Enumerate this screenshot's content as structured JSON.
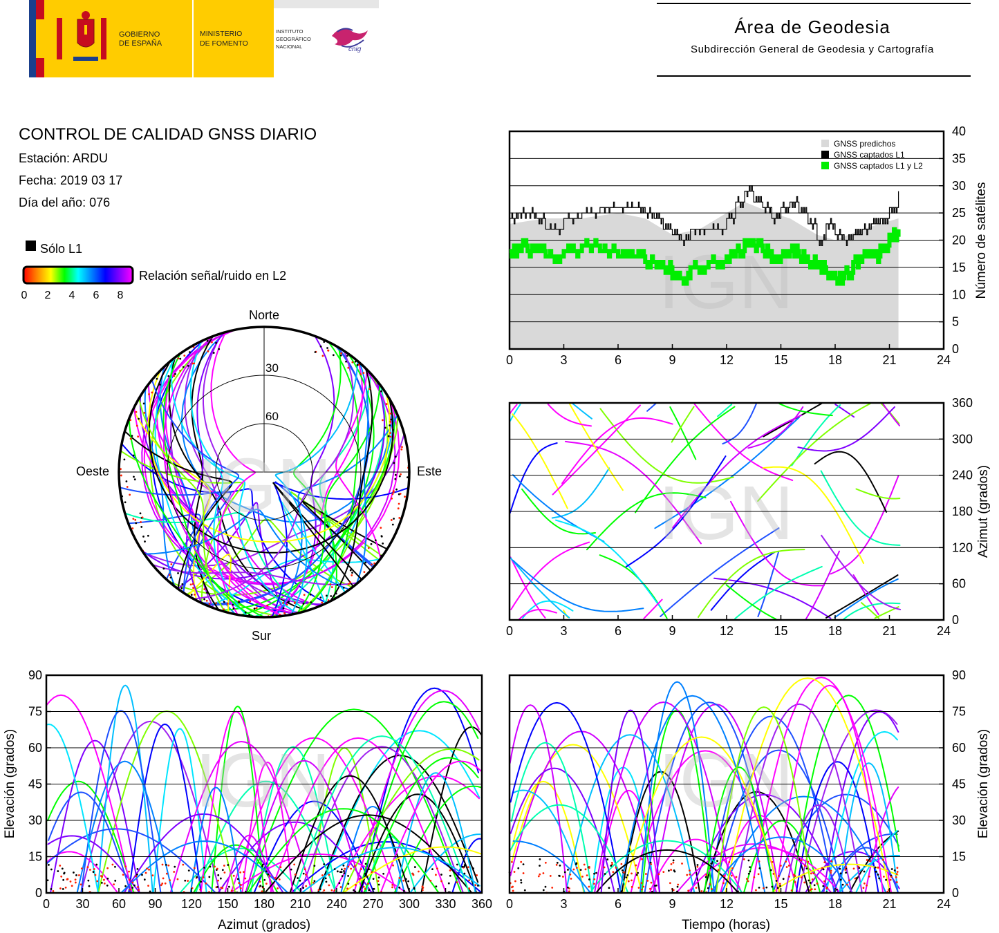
{
  "header": {
    "gov_line1": "GOBIERNO",
    "gov_line2": "DE ESPAÑA",
    "ministry_line1": "MINISTERIO",
    "ministry_line2": "DE FOMENTO",
    "ign_line1": "INSTITUTO",
    "ign_line2": "GEOGRÁFICO",
    "ign_line3": "NACIONAL",
    "cnig_logo_text": "cnig",
    "title": "Área de Geodesia",
    "subtitle": "Subdirección General de Geodesia y Cartografía"
  },
  "report": {
    "title": "CONTROL DE CALIDAD GNSS DIARIO",
    "station": "Estación: ARDU",
    "date": "Fecha: 2019 03 17",
    "doy": "Día del año: 076"
  },
  "legend": {
    "only_l1": "Sólo L1",
    "snr_label": "Relación señal/ruido en L2",
    "snr_ticks": [
      "0",
      "2",
      "4",
      "6",
      "8"
    ],
    "snr_colors": [
      "#ff0000",
      "#ff8800",
      "#ffff00",
      "#00ff00",
      "#00ffff",
      "#0080ff",
      "#0000ff",
      "#8000ff",
      "#ff00ff"
    ]
  },
  "watermark": "IGN",
  "chart_data": [
    {
      "id": "satellite-count",
      "type": "line",
      "ylabel": "Número de satélites",
      "xlim": [
        0,
        24
      ],
      "ylim": [
        0,
        40
      ],
      "xticks": [
        "0",
        "3",
        "6",
        "9",
        "12",
        "15",
        "18",
        "21",
        "24"
      ],
      "yticks": [
        "0",
        "5",
        "10",
        "15",
        "20",
        "25",
        "30",
        "35",
        "40"
      ],
      "grid": "horizontal",
      "legend_position": "top-right",
      "series": [
        {
          "name": "GNSS predichos",
          "color": "#d9d9d9",
          "x": [
            0,
            2,
            4,
            6,
            7.5,
            9,
            10.5,
            12,
            13,
            14.5,
            15.5,
            17,
            18,
            19.5,
            20.5,
            21.5
          ],
          "values": [
            23,
            24,
            24,
            25,
            24,
            21,
            22,
            25,
            27,
            25,
            24,
            21,
            20,
            22,
            23,
            24
          ]
        },
        {
          "name": "GNSS captados L1",
          "color": "#000000",
          "x": [
            0,
            0.5,
            1,
            1.5,
            2,
            3,
            4,
            5,
            6,
            7,
            7.5,
            8,
            8.5,
            9,
            9.5,
            10,
            11,
            12,
            12.5,
            13,
            13.5,
            14,
            14.5,
            15,
            15.5,
            16,
            16.5,
            17,
            17.5,
            18,
            18.5,
            19,
            19.5,
            20,
            20.5,
            21,
            21.5
          ],
          "values": [
            24,
            25,
            25,
            24,
            22,
            24,
            25,
            26,
            26,
            26,
            25,
            24,
            22,
            21,
            20,
            22,
            22,
            24,
            27,
            29,
            27,
            26,
            24,
            26,
            27,
            25,
            23,
            20,
            23,
            21,
            20,
            21,
            22,
            23,
            24,
            26,
            29
          ]
        },
        {
          "name": "GNSS captados L1 y L2",
          "color": "#00ee00",
          "x": [
            0,
            0.5,
            1,
            1.5,
            2,
            3,
            4,
            5,
            6,
            7,
            7.5,
            8,
            8.5,
            9,
            9.5,
            10,
            11,
            12,
            12.5,
            13,
            13.5,
            14,
            14.5,
            15,
            15.5,
            16,
            16.5,
            17,
            17.5,
            18,
            18.5,
            19,
            19.5,
            20,
            20.5,
            21,
            21.5
          ],
          "values": [
            18,
            19,
            18,
            18,
            17,
            18,
            19,
            18,
            17,
            17,
            16,
            16,
            15,
            13,
            13,
            15,
            16,
            17,
            18,
            20,
            19,
            18,
            16,
            17,
            18,
            17,
            16,
            15,
            14,
            13,
            14,
            16,
            17,
            17,
            19,
            21,
            22
          ]
        }
      ]
    },
    {
      "id": "azimuth-time",
      "type": "scatter",
      "ylabel": "Azimut (grados)",
      "xlim": [
        0,
        24
      ],
      "ylim": [
        0,
        360
      ],
      "xticks": [
        "0",
        "3",
        "6",
        "9",
        "12",
        "15",
        "18",
        "21",
        "24"
      ],
      "yticks": [
        "0",
        "60",
        "120",
        "180",
        "240",
        "300",
        "360"
      ],
      "grid": "horizontal"
    },
    {
      "id": "elevation-azimuth",
      "type": "scatter",
      "xlabel": "Azimut (grados)",
      "ylabel": "Elevación (grados)",
      "xlim": [
        0,
        360
      ],
      "ylim": [
        0,
        90
      ],
      "xticks": [
        "0",
        "30",
        "60",
        "90",
        "120",
        "150",
        "180",
        "210",
        "240",
        "270",
        "300",
        "330",
        "360"
      ],
      "yticks": [
        "0",
        "15",
        "30",
        "45",
        "60",
        "75",
        "90"
      ],
      "grid": "horizontal"
    },
    {
      "id": "elevation-time",
      "type": "scatter",
      "xlabel": "Tiempo (horas)",
      "ylabel": "Elevación (grados)",
      "xlim": [
        0,
        24
      ],
      "ylim": [
        0,
        90
      ],
      "xticks": [
        "0",
        "3",
        "6",
        "9",
        "12",
        "15",
        "18",
        "21",
        "24"
      ],
      "yticks": [
        "0",
        "15",
        "30",
        "45",
        "60",
        "75",
        "90"
      ],
      "grid": "horizontal"
    },
    {
      "id": "skyplot",
      "type": "scatter",
      "directions": {
        "north": "Norte",
        "south": "Sur",
        "east": "Este",
        "west": "Oeste"
      },
      "rings": [
        "30",
        "60"
      ]
    }
  ]
}
